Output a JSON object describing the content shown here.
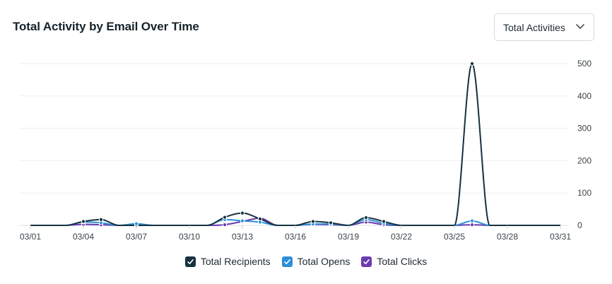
{
  "header": {
    "title": "Total Activity by Email Over Time",
    "dropdown_value": "Total Activities"
  },
  "icons": {
    "dropdown": "chevron-down-icon",
    "legend_check": "checkmark-icon"
  },
  "chart_data": {
    "type": "line",
    "title": "Total Activity by Email Over Time",
    "x": [
      "03/01",
      "03/02",
      "03/03",
      "03/04",
      "03/05",
      "03/06",
      "03/07",
      "03/08",
      "03/09",
      "03/10",
      "03/11",
      "03/12",
      "03/13",
      "03/14",
      "03/15",
      "03/16",
      "03/17",
      "03/18",
      "03/19",
      "03/20",
      "03/21",
      "03/22",
      "03/23",
      "03/24",
      "03/25",
      "03/26",
      "03/27",
      "03/28",
      "03/29",
      "03/30",
      "03/31"
    ],
    "x_tick_labels": [
      "03/01",
      "03/04",
      "03/07",
      "03/10",
      "03/13",
      "03/16",
      "03/19",
      "03/22",
      "03/25",
      "03/28",
      "03/31"
    ],
    "y_ticks": [
      0,
      100,
      200,
      300,
      400,
      500
    ],
    "ylim": [
      0,
      500
    ],
    "y_axis_side": "right",
    "grid": true,
    "legend_position": "bottom-center",
    "series": [
      {
        "name": "Total Recipients",
        "color": "#16323f",
        "values": [
          0,
          0,
          0,
          12,
          18,
          0,
          0,
          0,
          0,
          0,
          0,
          25,
          38,
          20,
          0,
          0,
          12,
          8,
          0,
          24,
          12,
          0,
          0,
          0,
          0,
          500,
          0,
          0,
          0,
          0,
          0
        ]
      },
      {
        "name": "Total Opens",
        "color": "#2d8fd8",
        "values": [
          0,
          0,
          0,
          10,
          8,
          0,
          5,
          0,
          0,
          0,
          0,
          18,
          14,
          10,
          0,
          0,
          4,
          4,
          0,
          18,
          6,
          0,
          0,
          0,
          0,
          14,
          0,
          0,
          0,
          0,
          0
        ]
      },
      {
        "name": "Total Clicks",
        "color": "#6c3bb0",
        "values": [
          0,
          0,
          0,
          3,
          2,
          0,
          1,
          0,
          0,
          0,
          0,
          2,
          12,
          22,
          0,
          0,
          3,
          2,
          0,
          10,
          2,
          0,
          0,
          0,
          0,
          2,
          0,
          0,
          0,
          0,
          0
        ]
      }
    ]
  }
}
